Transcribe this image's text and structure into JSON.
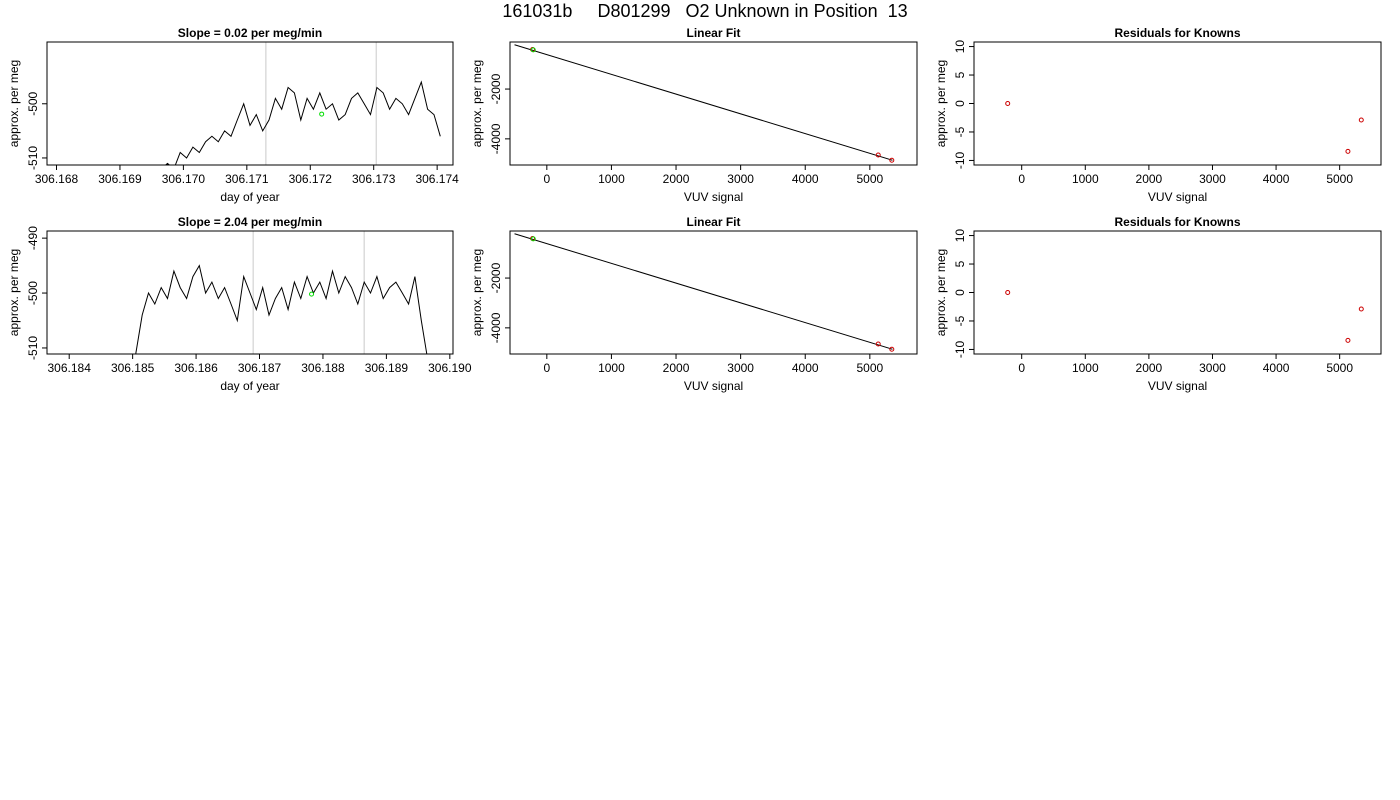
{
  "title": "161031b     D801299   O2 Unknown in Position  13",
  "colors": {
    "trace": "#000000",
    "marker_grid": "#d3d3d3",
    "unknown_point": "#00dd00",
    "known_point": "#cc0000"
  },
  "chart_data": [
    {
      "type": "line",
      "title": "Slope =  0.02  per meg/min",
      "xlabel": "day of year",
      "ylabel": "approx. per meg",
      "xlim": [
        306.16785,
        306.17425
      ],
      "ylim": [
        -511.3,
        -488.6
      ],
      "xticks": [
        306.168,
        306.169,
        306.17,
        306.171,
        306.172,
        306.173,
        306.174
      ],
      "xtick_labels": [
        "306.168",
        "306.169",
        "306.170",
        "306.171",
        "306.172",
        "306.173",
        "306.174"
      ],
      "yticks": [
        -510,
        -500
      ],
      "ytick_labels": [
        "-510",
        "-500"
      ],
      "vlines": [
        306.1713,
        306.17304
      ],
      "series": [
        {
          "x": [
            306.16965,
            306.16975,
            306.16985,
            306.16995,
            306.17005,
            306.17015,
            306.17025,
            306.17035,
            306.17045,
            306.17055,
            306.17065,
            306.17075,
            306.17085,
            306.17095,
            306.17105,
            306.17115,
            306.17125,
            306.17135,
            306.17145,
            306.17155,
            306.17165,
            306.17175,
            306.17185,
            306.17195,
            306.17205,
            306.17215,
            306.17225,
            306.17235,
            306.17245,
            306.17255,
            306.17265,
            306.17275,
            306.17285,
            306.17295,
            306.17305,
            306.17315,
            306.17325,
            306.17335,
            306.17345,
            306.17355,
            306.17365,
            306.17375,
            306.17385,
            306.17395,
            306.17405
          ],
          "y": [
            -512,
            -511,
            -512,
            -509,
            -510,
            -508,
            -509,
            -507,
            -506,
            -507,
            -505,
            -506,
            -503,
            -500,
            -504,
            -502,
            -505,
            -503,
            -499,
            -501,
            -497,
            -498,
            -503,
            -499,
            -501,
            -498,
            -501,
            -500,
            -503,
            -502,
            -499,
            -498,
            -500,
            -502,
            -497,
            -498,
            -501,
            -499,
            -500,
            -502,
            -499,
            -496,
            -501,
            -502,
            -506
          ]
        }
      ],
      "unknown_point": {
        "x": 306.17218,
        "y": -501.9
      }
    },
    {
      "type": "scatter",
      "title": "Linear Fit",
      "xlabel": "VUV signal",
      "ylabel": "approx. per meg",
      "xlim": [
        -570,
        5730
      ],
      "ylim": [
        -5050,
        -110
      ],
      "xticks": [
        0,
        1000,
        2000,
        3000,
        4000,
        5000
      ],
      "xtick_labels": [
        "0",
        "1000",
        "2000",
        "3000",
        "4000",
        "5000"
      ],
      "yticks": [
        -4000,
        -2000
      ],
      "ytick_labels": [
        "-4000",
        "-2000"
      ],
      "fit_line": {
        "x": [
          -500,
          5350
        ],
        "y": [
          -220,
          -4860
        ]
      },
      "known_points": {
        "x": [
          -220,
          5130,
          5340
        ],
        "y": [
          -410,
          -4650,
          -4860
        ]
      },
      "unknown_point": {
        "x": -210,
        "y": -425
      }
    },
    {
      "type": "scatter",
      "title": "Residuals for Knowns",
      "xlabel": "VUV signal",
      "ylabel": "approx. per meg",
      "xlim": [
        -750,
        5650
      ],
      "ylim": [
        -10.8,
        10.8
      ],
      "xticks": [
        0,
        1000,
        2000,
        3000,
        4000,
        5000
      ],
      "xtick_labels": [
        "0",
        "1000",
        "2000",
        "3000",
        "4000",
        "5000"
      ],
      "yticks": [
        -10,
        -5,
        0,
        5,
        10
      ],
      "ytick_labels": [
        "-10",
        "-5",
        "0",
        "5",
        "10"
      ],
      "known_points": {
        "x": [
          -220,
          5130,
          5340
        ],
        "y": [
          0,
          -8.4,
          -2.9
        ]
      }
    },
    {
      "type": "line",
      "title": "Slope =  2.04  per meg/min",
      "xlabel": "day of year",
      "ylabel": "approx. per meg",
      "xlim": [
        306.18365,
        306.19005
      ],
      "ylim": [
        -511.1,
        -488.7
      ],
      "xticks": [
        306.184,
        306.185,
        306.186,
        306.187,
        306.188,
        306.189,
        306.19
      ],
      "xtick_labels": [
        "306.184",
        "306.185",
        "306.186",
        "306.187",
        "306.188",
        "306.189",
        "306.190"
      ],
      "yticks": [
        -510,
        -500,
        -490
      ],
      "ytick_labels": [
        "-510",
        "-500",
        "-490"
      ],
      "vlines": [
        306.1869,
        306.18865
      ],
      "series": [
        {
          "x": [
            306.18505,
            306.18515,
            306.18525,
            306.18535,
            306.18545,
            306.18555,
            306.18565,
            306.18575,
            306.18585,
            306.18595,
            306.18605,
            306.18615,
            306.18625,
            306.18635,
            306.18645,
            306.18655,
            306.18665,
            306.18675,
            306.18685,
            306.18695,
            306.18705,
            306.18715,
            306.18725,
            306.18735,
            306.18745,
            306.18755,
            306.18765,
            306.18775,
            306.18785,
            306.18795,
            306.18805,
            306.18815,
            306.18825,
            306.18835,
            306.18845,
            306.18855,
            306.18865,
            306.18875,
            306.18885,
            306.18895,
            306.18905,
            306.18915,
            306.18925,
            306.18935,
            306.18945,
            306.18955,
            306.18965
          ],
          "y": [
            -511,
            -504,
            -500,
            -502,
            -499,
            -501,
            -496,
            -499,
            -501,
            -497,
            -495,
            -500,
            -498,
            -501,
            -499,
            -502,
            -505,
            -497,
            -500,
            -503,
            -499,
            -504,
            -501,
            -499,
            -503,
            -498,
            -501,
            -497,
            -500,
            -498,
            -501,
            -496,
            -500,
            -497,
            -499,
            -502,
            -498,
            -500,
            -497,
            -501,
            -499,
            -498,
            -500,
            -502,
            -497,
            -505,
            -512
          ]
        }
      ],
      "unknown_point": {
        "x": 306.18782,
        "y": -500.2
      }
    },
    {
      "type": "scatter",
      "title": "Linear Fit",
      "xlabel": "VUV signal",
      "ylabel": "approx. per meg",
      "xlim": [
        -570,
        5730
      ],
      "ylim": [
        -5050,
        -110
      ],
      "xticks": [
        0,
        1000,
        2000,
        3000,
        4000,
        5000
      ],
      "xtick_labels": [
        "0",
        "1000",
        "2000",
        "3000",
        "4000",
        "5000"
      ],
      "yticks": [
        -4000,
        -2000
      ],
      "ytick_labels": [
        "-4000",
        "-2000"
      ],
      "fit_line": {
        "x": [
          -500,
          5350
        ],
        "y": [
          -220,
          -4860
        ]
      },
      "known_points": {
        "x": [
          -220,
          5130,
          5340
        ],
        "y": [
          -410,
          -4650,
          -4860
        ]
      },
      "unknown_point": {
        "x": -210,
        "y": -425
      }
    },
    {
      "type": "scatter",
      "title": "Residuals for Knowns",
      "xlabel": "VUV signal",
      "ylabel": "approx. per meg",
      "xlim": [
        -750,
        5650
      ],
      "ylim": [
        -10.8,
        10.8
      ],
      "xticks": [
        0,
        1000,
        2000,
        3000,
        4000,
        5000
      ],
      "xtick_labels": [
        "0",
        "1000",
        "2000",
        "3000",
        "4000",
        "5000"
      ],
      "yticks": [
        -10,
        -5,
        0,
        5,
        10
      ],
      "ytick_labels": [
        "-10",
        "-5",
        "0",
        "5",
        "10"
      ],
      "known_points": {
        "x": [
          -220,
          5130,
          5340
        ],
        "y": [
          0,
          -8.4,
          -2.9
        ]
      }
    }
  ]
}
